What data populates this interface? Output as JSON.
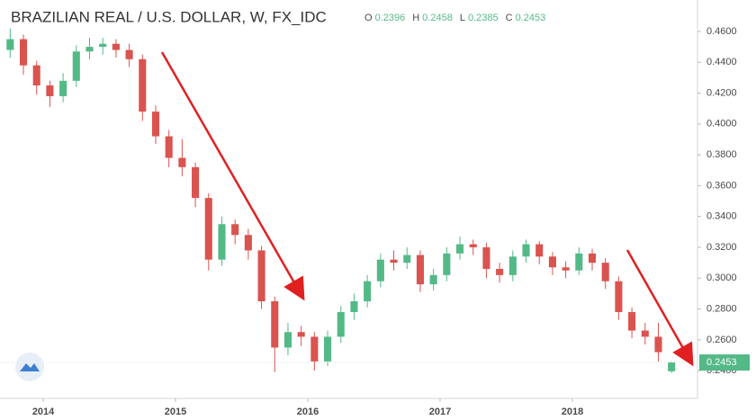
{
  "chart_data": {
    "type": "candlestick",
    "title": "BRAZILIAN REAL / U.S. DOLLAR, W, FX_IDC",
    "ohlc_keys": [
      "O",
      "H",
      "L",
      "C"
    ],
    "up_color": "#53b987",
    "down_color": "#d9534f",
    "x": [
      2013.75,
      2013.85,
      2013.95,
      2014.05,
      2014.15,
      2014.25,
      2014.35,
      2014.45,
      2014.55,
      2014.65,
      2014.75,
      2014.85,
      2014.95,
      2015.05,
      2015.15,
      2015.25,
      2015.35,
      2015.45,
      2015.55,
      2015.65,
      2015.75,
      2015.85,
      2015.95,
      2016.05,
      2016.15,
      2016.25,
      2016.35,
      2016.45,
      2016.55,
      2016.65,
      2016.75,
      2016.85,
      2016.95,
      2017.05,
      2017.15,
      2017.25,
      2017.35,
      2017.45,
      2017.55,
      2017.65,
      2017.75,
      2017.85,
      2017.95,
      2018.05,
      2018.15,
      2018.25,
      2018.35,
      2018.45,
      2018.55,
      2018.65,
      2018.75
    ],
    "open": [
      0.448,
      0.455,
      0.438,
      0.425,
      0.418,
      0.428,
      0.447,
      0.45,
      0.452,
      0.448,
      0.442,
      0.408,
      0.392,
      0.378,
      0.372,
      0.352,
      0.312,
      0.335,
      0.328,
      0.318,
      0.285,
      0.255,
      0.265,
      0.262,
      0.246,
      0.262,
      0.278,
      0.285,
      0.298,
      0.312,
      0.31,
      0.315,
      0.296,
      0.302,
      0.316,
      0.322,
      0.32,
      0.306,
      0.302,
      0.314,
      0.322,
      0.314,
      0.307,
      0.305,
      0.316,
      0.31,
      0.298,
      0.278,
      0.266,
      0.262,
      0.2396
    ],
    "high": [
      0.462,
      0.458,
      0.441,
      0.428,
      0.433,
      0.451,
      0.456,
      0.456,
      0.455,
      0.452,
      0.445,
      0.412,
      0.396,
      0.39,
      0.375,
      0.355,
      0.34,
      0.338,
      0.332,
      0.321,
      0.288,
      0.271,
      0.269,
      0.265,
      0.266,
      0.282,
      0.29,
      0.302,
      0.316,
      0.318,
      0.32,
      0.318,
      0.306,
      0.32,
      0.327,
      0.325,
      0.323,
      0.31,
      0.318,
      0.325,
      0.324,
      0.317,
      0.311,
      0.32,
      0.319,
      0.313,
      0.301,
      0.281,
      0.271,
      0.271,
      0.2458
    ],
    "low": [
      0.443,
      0.432,
      0.419,
      0.411,
      0.414,
      0.424,
      0.442,
      0.445,
      0.443,
      0.437,
      0.402,
      0.387,
      0.372,
      0.366,
      0.346,
      0.305,
      0.308,
      0.322,
      0.312,
      0.28,
      0.239,
      0.25,
      0.256,
      0.24,
      0.243,
      0.258,
      0.273,
      0.281,
      0.294,
      0.305,
      0.306,
      0.291,
      0.292,
      0.298,
      0.312,
      0.315,
      0.3,
      0.297,
      0.298,
      0.31,
      0.309,
      0.302,
      0.3,
      0.302,
      0.305,
      0.293,
      0.273,
      0.261,
      0.257,
      0.246,
      0.2385
    ],
    "close": [
      0.455,
      0.438,
      0.425,
      0.418,
      0.428,
      0.447,
      0.45,
      0.452,
      0.448,
      0.442,
      0.408,
      0.392,
      0.378,
      0.372,
      0.352,
      0.312,
      0.335,
      0.328,
      0.318,
      0.285,
      0.255,
      0.265,
      0.262,
      0.246,
      0.262,
      0.278,
      0.285,
      0.298,
      0.312,
      0.31,
      0.315,
      0.296,
      0.302,
      0.316,
      0.322,
      0.32,
      0.306,
      0.302,
      0.314,
      0.322,
      0.314,
      0.307,
      0.305,
      0.316,
      0.31,
      0.298,
      0.278,
      0.266,
      0.262,
      0.252,
      0.2453
    ],
    "xlim": [
      2013.673,
      2018.946
    ],
    "xticks": [
      2014,
      2015,
      2016,
      2017,
      2018
    ],
    "ylim": [
      0.222,
      0.4804
    ],
    "yticks": [
      {
        "value": 0.24,
        "label": "0.2400"
      },
      {
        "value": 0.26,
        "label": "0.2600"
      },
      {
        "value": 0.28,
        "label": "0.2800"
      },
      {
        "value": 0.3,
        "label": "0.3000"
      },
      {
        "value": 0.32,
        "label": "0.3200"
      },
      {
        "value": 0.34,
        "label": "0.3400"
      },
      {
        "value": 0.36,
        "label": "0.3600"
      },
      {
        "value": 0.38,
        "label": "0.3800"
      },
      {
        "value": 0.4,
        "label": "0.4000"
      },
      {
        "value": 0.42,
        "label": "0.4200"
      },
      {
        "value": 0.44,
        "label": "0.4400"
      },
      {
        "value": 0.46,
        "label": "0.4600"
      }
    ]
  }
}
